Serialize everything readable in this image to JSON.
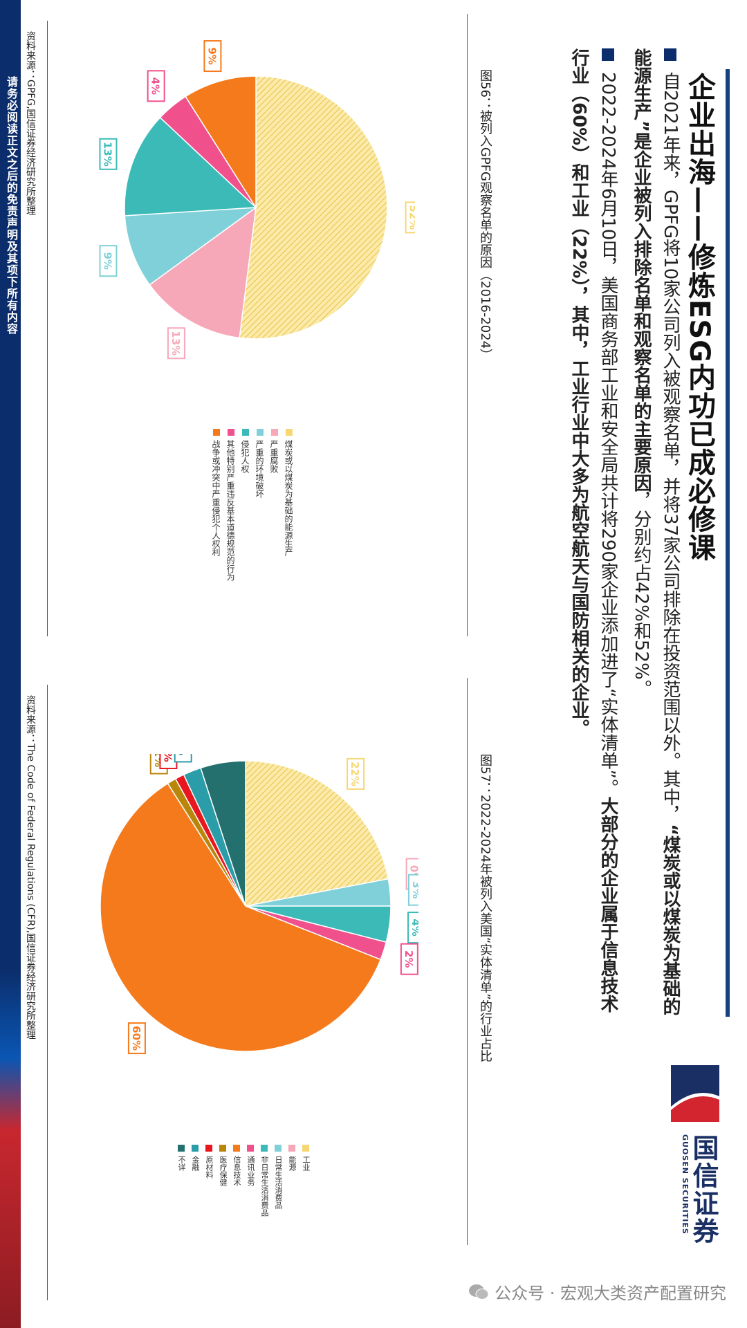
{
  "sidebar": {
    "notice": "请务必阅读正文之后的免责声明及其项下所有内容"
  },
  "title": "企业出海——修炼ESG内功已成必修课",
  "bullets": [
    {
      "parts": [
        {
          "text": "自2021年来，GPFG将10家公司列入被观察名单，并将37家公司排除在投资范围以外。其中，",
          "bold": false
        },
        {
          "text": "“煤炭或以煤炭为基础的能源生产”是企业被列入排除名单和观察名单的主要原因",
          "bold": true
        },
        {
          "text": "，分别约占42%和52%。",
          "bold": false
        }
      ]
    },
    {
      "parts": [
        {
          "text": "2022-2024年6月10日，美国商务部工业和安全局共计将290家企业添加进了“实体清单”。",
          "bold": false
        },
        {
          "text": "大部分的企业属于信息技术行业（60%）和工业（22%），其中，工业行业中大多为航空航天与国防相关的企业。",
          "bold": true
        }
      ]
    }
  ],
  "logo": {
    "cn": "国信证券",
    "en": "GUOSEN SECURITIES"
  },
  "figures": [
    {
      "caption": "图56：被列入GPFG观察名单的原因（2016-2024）",
      "source": "资料来源：GPFG,国信证券经济研究所整理"
    },
    {
      "caption": "图57：2022-2024年被列入美国“实体清单”的行业占比",
      "source": "资料来源：The Code of Federal Regulations (CFR),国信证券经济研究所整理"
    }
  ],
  "watermark": "公众号 · 宏观大类资产配置研究",
  "chart_data": [
    {
      "type": "pie",
      "title": "",
      "labels": [
        "煤炭或以煤炭为基础的能源生产",
        "严重腐败",
        "严重的环境破坏",
        "侵犯人权",
        "其他特别严重违反基本道德规范的行为",
        "战争或冲突中严重侵犯个人权利"
      ],
      "values": [
        52,
        13,
        9,
        13,
        4,
        9
      ],
      "data_labels": [
        "52%",
        "13%",
        "9%",
        "13%",
        "4%",
        "9%"
      ],
      "colors": [
        "#f7d774",
        "#f7a8b8",
        "#7fd0d8",
        "#3bbab8",
        "#f0508c",
        "#f57a1c"
      ],
      "legend": "right"
    },
    {
      "type": "pie",
      "title": "",
      "labels": [
        "工业",
        "能源",
        "日常生活消费品",
        "非日常生活消费品",
        "通讯业务",
        "信息技术",
        "医疗保健",
        "原材料",
        "金融",
        "不详"
      ],
      "values": [
        22,
        0,
        3,
        4,
        2,
        60,
        1,
        1,
        2,
        5
      ],
      "data_labels": [
        "22%",
        "0%",
        "3%",
        "4%",
        "2%",
        "60%",
        "1%",
        "1%",
        "2%",
        "5%"
      ],
      "colors": [
        "#f7d774",
        "#f7a8b8",
        "#7fd0d8",
        "#3bbab8",
        "#f0508c",
        "#f57a1c",
        "#b8860b",
        "#e8171f",
        "#2a9da8",
        "#23706e"
      ],
      "legend": "right"
    }
  ]
}
